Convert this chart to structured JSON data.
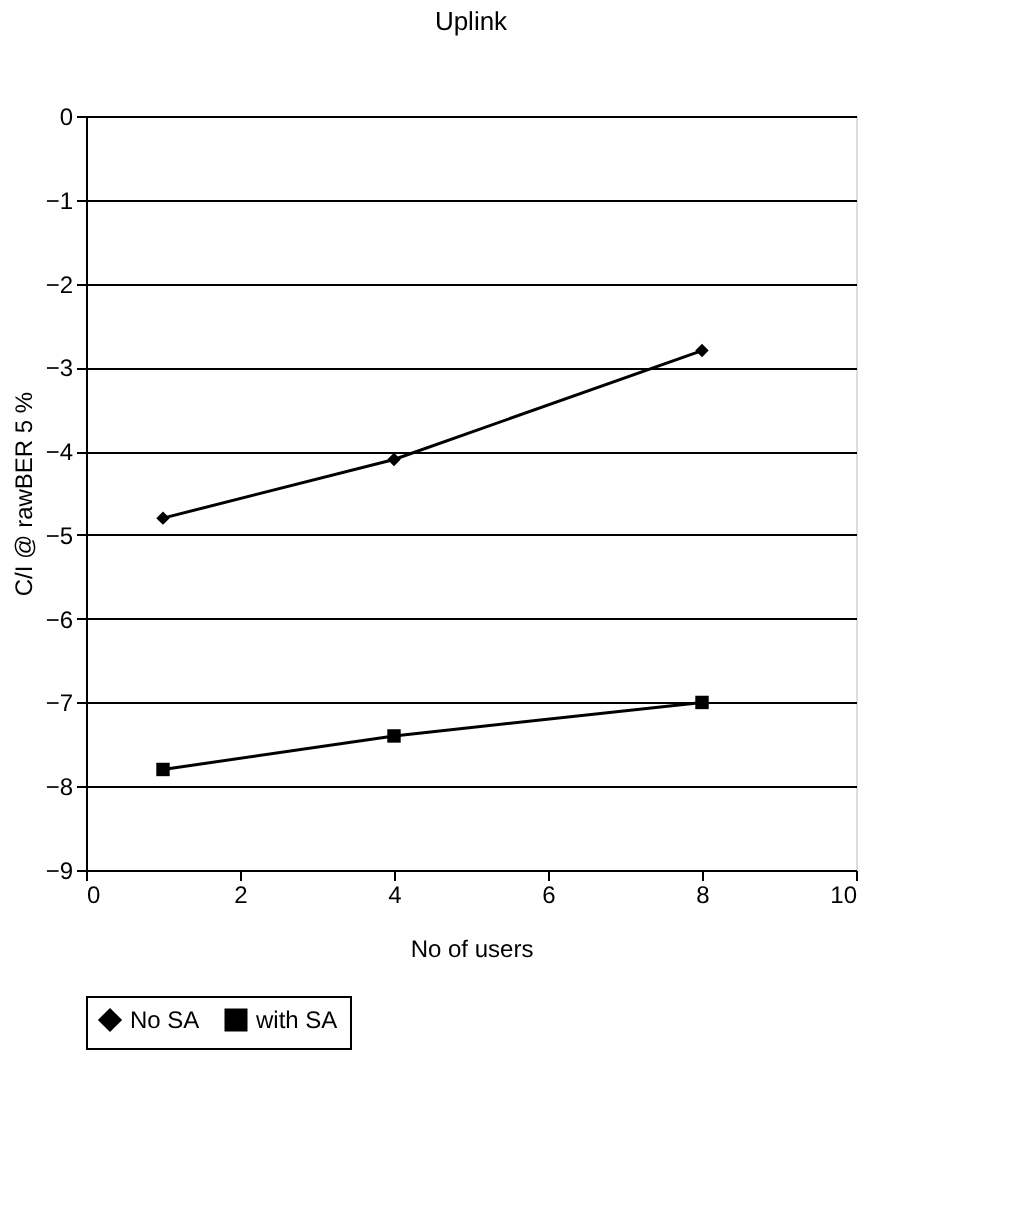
{
  "chart_data": {
    "type": "line",
    "title": "Uplink",
    "xlabel": "No of users",
    "ylabel": "C/I @ rawBER 5 %",
    "x": [
      1,
      4,
      8
    ],
    "series": [
      {
        "name": "No SA",
        "color": "#000000",
        "marker": "diamond",
        "values": [
          -4.8,
          -4.1,
          -2.8
        ]
      },
      {
        "name": "with SA",
        "color": "#000000",
        "marker": "square",
        "values": [
          -7.8,
          -7.4,
          -7.0
        ]
      }
    ],
    "xlim": [
      0,
      10
    ],
    "xticks": [
      0,
      2,
      4,
      6,
      8,
      10
    ],
    "ylim": [
      -9,
      0
    ],
    "yticks": [
      -9,
      -8,
      -7,
      -6,
      -5,
      -4,
      -3,
      -2,
      -1,
      0
    ],
    "grid": "y",
    "legend": "bottom",
    "line_style": "solid"
  }
}
